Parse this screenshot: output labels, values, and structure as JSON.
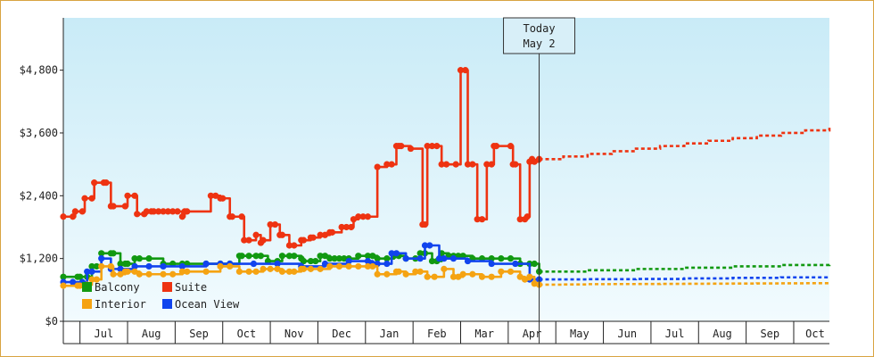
{
  "chart_data": {
    "type": "line",
    "title": "",
    "xlabel": "",
    "ylabel": "",
    "ylim": [
      0,
      5800
    ],
    "ytick_values": [
      0,
      1200,
      2400,
      3600,
      4800
    ],
    "ytick_labels": [
      "$0",
      "$1,200",
      "$2,400",
      "$3,600",
      "$4,800"
    ],
    "month_labels": [
      "Jul",
      "Aug",
      "Sep",
      "Oct",
      "Nov",
      "Dec",
      "Jan",
      "Feb",
      "Mar",
      "Apr",
      "May",
      "Jun",
      "Jul",
      "Aug",
      "Sep",
      "Oct"
    ],
    "x_range_months": [
      0,
      16.1
    ],
    "today_label": [
      "Today",
      "May 2"
    ],
    "today_month": 10.0,
    "legend": [
      "Balcony",
      "Suite",
      "Interior",
      "Ocean View"
    ],
    "colors": {
      "Balcony": "#119911",
      "Suite": "#ee3311",
      "Interior": "#f5a312",
      "Ocean View": "#1144ee",
      "background_top": "#c9ebf7",
      "background_bottom": "#f2fbfe"
    },
    "series": [
      {
        "name": "Suite",
        "x": [
          0.0,
          0.2,
          0.25,
          0.4,
          0.45,
          0.6,
          0.65,
          0.85,
          0.9,
          1.0,
          1.05,
          1.3,
          1.35,
          1.5,
          1.55,
          1.7,
          1.75,
          1.85,
          1.9,
          2.0,
          2.1,
          2.2,
          2.3,
          2.4,
          2.5,
          2.55,
          2.6,
          3.1,
          3.2,
          3.3,
          3.35,
          3.5,
          3.55,
          3.75,
          3.8,
          3.9,
          4.05,
          4.15,
          4.2,
          4.35,
          4.45,
          4.55,
          4.6,
          4.75,
          4.85,
          5.0,
          5.05,
          5.2,
          5.25,
          5.4,
          5.5,
          5.6,
          5.65,
          5.85,
          5.95,
          6.05,
          6.1,
          6.2,
          6.3,
          6.4,
          6.6,
          6.8,
          6.9,
          7.0,
          7.05,
          7.1,
          7.3,
          7.55,
          7.6,
          7.65,
          7.75,
          7.85,
          7.95,
          8.05,
          8.25,
          8.35,
          8.45,
          8.5,
          8.6,
          8.7,
          8.8,
          8.9,
          9.0,
          9.05,
          9.1,
          9.4,
          9.45,
          9.5,
          9.6,
          9.7,
          9.75,
          9.8,
          9.85,
          9.9,
          10.0
        ],
        "y": [
          2000,
          2000,
          2100,
          2100,
          2350,
          2350,
          2650,
          2650,
          2650,
          2200,
          2200,
          2200,
          2400,
          2400,
          2050,
          2050,
          2100,
          2100,
          2100,
          2100,
          2100,
          2100,
          2100,
          2100,
          2000,
          2100,
          2100,
          2400,
          2400,
          2350,
          2350,
          2000,
          2000,
          2000,
          1550,
          1550,
          1650,
          1500,
          1550,
          1850,
          1850,
          1650,
          1650,
          1450,
          1450,
          1550,
          1550,
          1600,
          1600,
          1650,
          1650,
          1700,
          1700,
          1800,
          1800,
          1800,
          1950,
          2000,
          2000,
          2000,
          2950,
          3000,
          3000,
          3350,
          3350,
          3350,
          3300,
          1850,
          1850,
          3350,
          3350,
          3350,
          3000,
          3000,
          3000,
          4800,
          4800,
          3000,
          3000,
          1950,
          1950,
          3000,
          3000,
          3350,
          3350,
          3350,
          3000,
          3000,
          1950,
          1950,
          2000,
          3050,
          3100,
          3050,
          3100
        ],
        "projection": [
          3100,
          3150,
          3200,
          3250,
          3300,
          3350,
          3400,
          3450,
          3500,
          3550,
          3600,
          3650,
          3700
        ]
      },
      {
        "name": "Balcony",
        "x": [
          0.0,
          0.3,
          0.35,
          0.5,
          0.6,
          0.7,
          0.8,
          1.0,
          1.05,
          1.2,
          1.3,
          1.35,
          1.5,
          1.6,
          1.8,
          2.1,
          2.3,
          2.5,
          2.6,
          3.0,
          3.3,
          3.5,
          3.7,
          3.75,
          3.9,
          4.05,
          4.15,
          4.3,
          4.5,
          4.6,
          4.75,
          4.85,
          5.0,
          5.05,
          5.2,
          5.3,
          5.4,
          5.5,
          5.6,
          5.7,
          5.8,
          5.9,
          6.0,
          6.2,
          6.4,
          6.5,
          6.6,
          6.8,
          6.95,
          7.05,
          7.2,
          7.4,
          7.5,
          7.6,
          7.75,
          7.85,
          7.95,
          8.1,
          8.2,
          8.3,
          8.4,
          8.6,
          8.8,
          9.0,
          9.2,
          9.4,
          9.6,
          9.8,
          9.9,
          10.0
        ],
        "y": [
          850,
          850,
          850,
          850,
          1050,
          1050,
          1300,
          1300,
          1300,
          1100,
          1100,
          1100,
          1200,
          1200,
          1200,
          1100,
          1100,
          1100,
          1100,
          1100,
          1100,
          1100,
          1250,
          1250,
          1250,
          1250,
          1250,
          1150,
          1150,
          1250,
          1250,
          1250,
          1200,
          1150,
          1150,
          1150,
          1250,
          1250,
          1200,
          1200,
          1200,
          1200,
          1200,
          1250,
          1250,
          1250,
          1200,
          1200,
          1250,
          1250,
          1200,
          1200,
          1300,
          1300,
          1150,
          1150,
          1300,
          1250,
          1250,
          1250,
          1250,
          1200,
          1200,
          1200,
          1200,
          1200,
          1100,
          1100,
          1100,
          950
        ],
        "projection": [
          950,
          950,
          975,
          975,
          1000,
          1000,
          1025,
          1025,
          1050,
          1050,
          1075,
          1075,
          1100
        ]
      },
      {
        "name": "Ocean View",
        "x": [
          0.0,
          0.2,
          0.4,
          0.5,
          0.6,
          0.8,
          1.0,
          1.2,
          1.5,
          1.8,
          2.1,
          2.5,
          3.0,
          3.3,
          3.5,
          4.0,
          4.5,
          5.0,
          5.5,
          6.0,
          6.4,
          6.5,
          6.6,
          6.8,
          6.9,
          7.0,
          7.2,
          7.5,
          7.6,
          7.7,
          7.9,
          8.0,
          8.2,
          8.5,
          9.0,
          9.5,
          9.8,
          10.0
        ],
        "y": [
          750,
          750,
          750,
          950,
          950,
          1200,
          1000,
          1000,
          1050,
          1050,
          1050,
          1050,
          1100,
          1100,
          1100,
          1100,
          1100,
          1050,
          1100,
          1150,
          1150,
          1100,
          1100,
          1100,
          1300,
          1300,
          1200,
          1200,
          1450,
          1450,
          1200,
          1200,
          1200,
          1150,
          1100,
          1100,
          800,
          800
        ],
        "projection": [
          800,
          800,
          805,
          805,
          810,
          810,
          820,
          820,
          830,
          830,
          840,
          840,
          850
        ]
      },
      {
        "name": "Interior",
        "x": [
          0.0,
          0.3,
          0.35,
          0.5,
          0.6,
          0.7,
          0.8,
          1.0,
          1.05,
          1.2,
          1.3,
          1.35,
          1.5,
          1.6,
          1.8,
          2.1,
          2.3,
          2.5,
          2.6,
          3.0,
          3.3,
          3.5,
          3.7,
          3.9,
          4.05,
          4.2,
          4.35,
          4.5,
          4.6,
          4.75,
          4.85,
          5.0,
          5.05,
          5.2,
          5.4,
          5.6,
          5.8,
          6.0,
          6.2,
          6.4,
          6.5,
          6.6,
          6.8,
          7.0,
          7.05,
          7.2,
          7.4,
          7.5,
          7.65,
          7.8,
          8.0,
          8.2,
          8.3,
          8.4,
          8.6,
          8.8,
          9.0,
          9.2,
          9.4,
          9.6,
          9.7,
          9.8,
          9.9,
          10.0
        ],
        "y": [
          680,
          680,
          680,
          700,
          800,
          800,
          1050,
          1050,
          900,
          900,
          950,
          950,
          950,
          900,
          900,
          900,
          900,
          950,
          950,
          950,
          1050,
          1050,
          950,
          950,
          950,
          1000,
          1000,
          1000,
          950,
          950,
          950,
          1000,
          1000,
          1000,
          1000,
          1050,
          1050,
          1050,
          1050,
          1050,
          1050,
          900,
          900,
          950,
          950,
          900,
          950,
          950,
          850,
          850,
          1000,
          850,
          850,
          900,
          900,
          850,
          850,
          950,
          950,
          850,
          800,
          850,
          720,
          700
        ],
        "projection": [
          700,
          705,
          710,
          712,
          714,
          716,
          718,
          720,
          722,
          724,
          726,
          728,
          730
        ]
      }
    ]
  }
}
